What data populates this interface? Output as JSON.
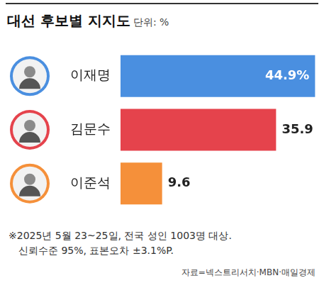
{
  "chart_data": {
    "type": "bar",
    "orientation": "horizontal",
    "title": "대선 후보별 지지도",
    "subtitle": "단위: %",
    "categories": [
      "이재명",
      "김문수",
      "이준석"
    ],
    "values": [
      44.9,
      35.9,
      9.6
    ],
    "value_labels": [
      "44.9%",
      "35.9",
      "9.6"
    ],
    "colors": [
      "#4a8fe0",
      "#e5434c",
      "#f5903a"
    ],
    "xlim": [
      0,
      45
    ],
    "data_labels": true,
    "tick_labels": "y",
    "grid": false,
    "notes": [
      "※2025년 5월 23~25일, 전국 성인 1003명 대상.",
      "신뢰수준 95%, 표본오차 ±3.1%P."
    ],
    "source": "자료=넥스트리서치·MBN·매일경제"
  }
}
